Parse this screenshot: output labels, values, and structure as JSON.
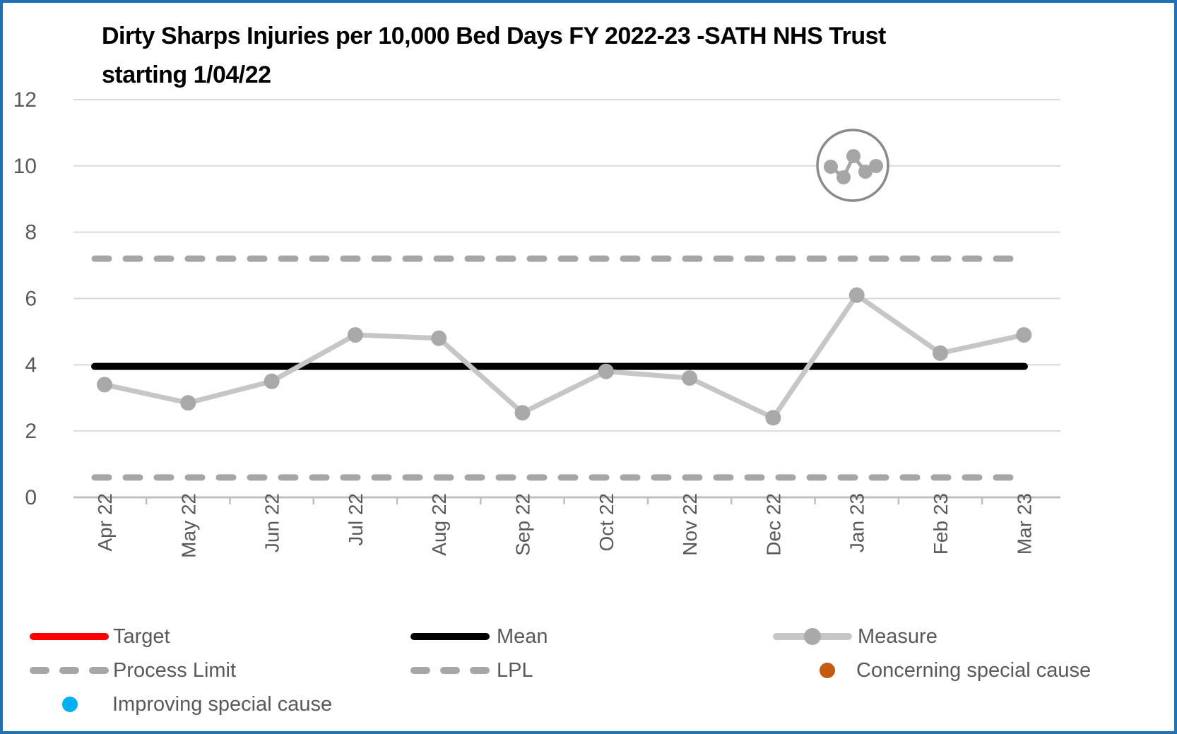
{
  "page": {
    "border_color": "#2171b5",
    "background_color": "#ffffff"
  },
  "chart_data": {
    "type": "line",
    "title": "Dirty Sharps Injuries per 10,000 Bed Days FY 2022-23 -SATH NHS Trust starting 1/04/22",
    "title_lines": [
      "Dirty Sharps Injuries per 10,000 Bed Days FY 2022-23 -SATH NHS Trust",
      "starting 1/04/22"
    ],
    "categories": [
      "Apr 22",
      "May 22",
      "Jun 22",
      "Jul 22",
      "Aug 22",
      "Sep 22",
      "Oct 22",
      "Nov 22",
      "Dec 22",
      "Jan 23",
      "Feb 23",
      "Mar 23"
    ],
    "series": [
      {
        "name": "Measure",
        "type": "line-markers",
        "values": [
          3.4,
          2.85,
          3.5,
          4.9,
          4.8,
          2.55,
          3.8,
          3.6,
          2.4,
          6.1,
          4.35,
          4.9
        ],
        "color": "#c6c6c6",
        "marker_color": "#a9a9a9"
      },
      {
        "name": "Mean",
        "type": "reference-line",
        "value": 3.95,
        "style": "solid",
        "color": "#000000"
      },
      {
        "name": "Process Limit",
        "type": "reference-line",
        "value": 7.2,
        "style": "dashed",
        "color": "#a6a6a6"
      },
      {
        "name": "LPL",
        "type": "reference-line",
        "value": 0.6,
        "style": "dashed",
        "color": "#a6a6a6"
      }
    ],
    "ylim": [
      0,
      12
    ],
    "yticks": [
      0,
      2,
      4,
      6,
      8,
      10,
      12
    ],
    "xlabel": "",
    "ylabel": "",
    "grid": "horizontal",
    "gridline_color": "#d9d9d9",
    "axis_line_color": "#bfbfbf",
    "tick_label_color": "#595959",
    "annotation_icon": "common-cause-variation-icon",
    "legend_position": "bottom"
  },
  "legend": {
    "items": [
      {
        "id": "target",
        "label": "Target",
        "swatch": "line",
        "color": "#ff0000"
      },
      {
        "id": "mean",
        "label": "Mean",
        "swatch": "line",
        "color": "#000000"
      },
      {
        "id": "measure",
        "label": "Measure",
        "swatch": "measure",
        "color": "#c6c6c6",
        "marker_color": "#a9a9a9"
      },
      {
        "id": "process_limit",
        "label": "Process Limit",
        "swatch": "dash",
        "color": "#a6a6a6"
      },
      {
        "id": "lpl",
        "label": "LPL",
        "swatch": "dash",
        "color": "#a6a6a6"
      },
      {
        "id": "concerning",
        "label": "Concerning special cause",
        "swatch": "dot",
        "color": "#c55a11"
      },
      {
        "id": "improving",
        "label": "Improving special cause",
        "swatch": "dot",
        "color": "#00b0f0"
      }
    ]
  }
}
